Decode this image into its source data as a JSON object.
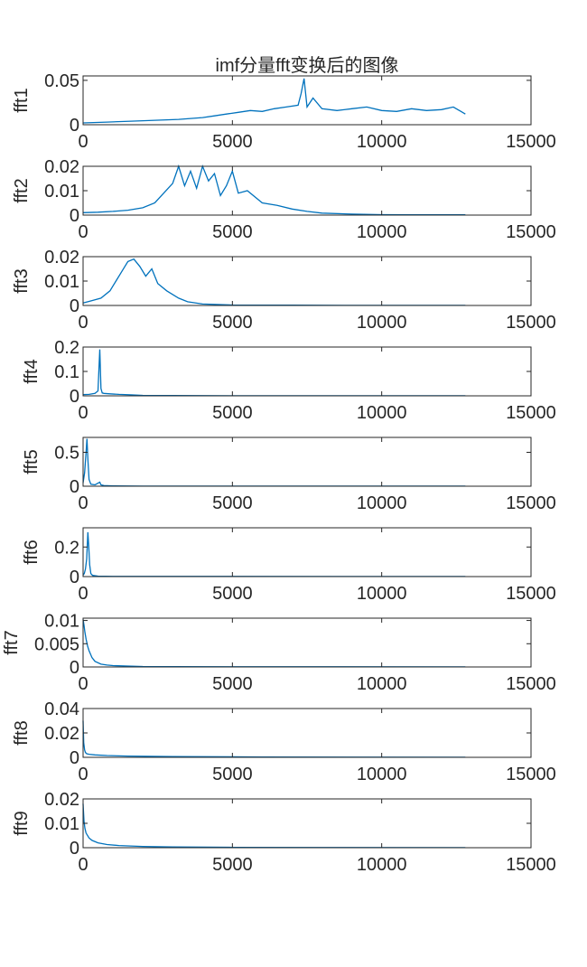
{
  "title": "imf分量fft变换后的图像",
  "colors": {
    "series": "#0072BD",
    "axis": "#262626",
    "background": "#ffffff"
  },
  "chart_data": [
    {
      "type": "line",
      "ylabel": "fft1",
      "xlim": [
        0,
        15000
      ],
      "ylim": [
        0,
        0.055
      ],
      "xticks": [
        "0",
        "5000",
        "10000",
        "15000"
      ],
      "yticks": [
        {
          "v": 0,
          "t": "0"
        },
        {
          "v": 0.05,
          "t": "0.05"
        }
      ],
      "x_end": 12800,
      "series": [
        {
          "x": [
            0,
            800,
            1600,
            2400,
            3200,
            4000,
            4400,
            4800,
            5200,
            5600,
            6000,
            6400,
            6800,
            7200,
            7300,
            7400,
            7500,
            7700,
            8000,
            8500,
            9000,
            9500,
            10000,
            10500,
            11000,
            11500,
            12000,
            12400,
            12800
          ],
          "values": [
            0.002,
            0.003,
            0.004,
            0.005,
            0.006,
            0.008,
            0.01,
            0.012,
            0.014,
            0.016,
            0.015,
            0.018,
            0.02,
            0.022,
            0.035,
            0.052,
            0.02,
            0.03,
            0.018,
            0.016,
            0.018,
            0.02,
            0.016,
            0.015,
            0.018,
            0.016,
            0.017,
            0.02,
            0.012
          ]
        }
      ]
    },
    {
      "type": "line",
      "ylabel": "fft2",
      "xlim": [
        0,
        15000
      ],
      "ylim": [
        0,
        0.02
      ],
      "xticks": [
        "0",
        "5000",
        "10000",
        "15000"
      ],
      "yticks": [
        {
          "v": 0,
          "t": "0"
        },
        {
          "v": 0.01,
          "t": "0.01"
        },
        {
          "v": 0.02,
          "t": "0.02"
        }
      ],
      "x_end": 12800,
      "series": [
        {
          "x": [
            0,
            500,
            1000,
            1500,
            2000,
            2400,
            2700,
            3000,
            3200,
            3400,
            3600,
            3800,
            4000,
            4200,
            4400,
            4600,
            4800,
            5000,
            5200,
            5500,
            6000,
            6500,
            7000,
            7500,
            8000,
            9000,
            10000,
            11000,
            12000,
            12800
          ],
          "values": [
            0.001,
            0.0012,
            0.0015,
            0.002,
            0.003,
            0.005,
            0.009,
            0.013,
            0.02,
            0.012,
            0.018,
            0.011,
            0.02,
            0.014,
            0.017,
            0.008,
            0.012,
            0.018,
            0.009,
            0.01,
            0.005,
            0.004,
            0.0025,
            0.0015,
            0.0008,
            0.0004,
            0.0002,
            0.0001,
            0.0001,
            0.0001
          ]
        }
      ]
    },
    {
      "type": "line",
      "ylabel": "fft3",
      "xlim": [
        0,
        15000
      ],
      "ylim": [
        0,
        0.02
      ],
      "xticks": [
        "0",
        "5000",
        "10000",
        "15000"
      ],
      "yticks": [
        {
          "v": 0,
          "t": "0"
        },
        {
          "v": 0.01,
          "t": "0.01"
        },
        {
          "v": 0.02,
          "t": "0.02"
        }
      ],
      "x_end": 12800,
      "series": [
        {
          "x": [
            0,
            300,
            600,
            900,
            1100,
            1300,
            1500,
            1700,
            1900,
            2100,
            2300,
            2500,
            2800,
            3200,
            3500,
            4000,
            5000,
            7000,
            9000,
            12800
          ],
          "values": [
            0.001,
            0.002,
            0.003,
            0.006,
            0.01,
            0.014,
            0.018,
            0.019,
            0.016,
            0.012,
            0.015,
            0.009,
            0.006,
            0.003,
            0.0015,
            0.0006,
            0.0002,
            0.0001,
            5e-05,
            5e-05
          ]
        }
      ]
    },
    {
      "type": "line",
      "ylabel": "fft4",
      "xlim": [
        0,
        15000
      ],
      "ylim": [
        0,
        0.2
      ],
      "xticks": [
        "0",
        "5000",
        "10000",
        "15000"
      ],
      "yticks": [
        {
          "v": 0,
          "t": "0"
        },
        {
          "v": 0.1,
          "t": "0.1"
        },
        {
          "v": 0.2,
          "t": "0.2"
        }
      ],
      "x_end": 12800,
      "series": [
        {
          "x": [
            0,
            200,
            400,
            500,
            560,
            600,
            640,
            700,
            900,
            1200,
            1600,
            2000,
            3000,
            5000,
            12800
          ],
          "values": [
            0.005,
            0.006,
            0.01,
            0.02,
            0.19,
            0.03,
            0.012,
            0.01,
            0.008,
            0.006,
            0.004,
            0.002,
            0.001,
            0.0005,
            0.0002
          ]
        }
      ]
    },
    {
      "type": "line",
      "ylabel": "fft5",
      "xlim": [
        0,
        15000
      ],
      "ylim": [
        0,
        0.72
      ],
      "xticks": [
        "0",
        "5000",
        "10000",
        "15000"
      ],
      "yticks": [
        {
          "v": 0,
          "t": "0"
        },
        {
          "v": 0.5,
          "t": "0.5"
        }
      ],
      "x_end": 12800,
      "series": [
        {
          "x": [
            0,
            50,
            100,
            130,
            160,
            200,
            260,
            400,
            560,
            600,
            700,
            1000,
            2000,
            12800
          ],
          "values": [
            0.05,
            0.2,
            0.5,
            0.7,
            0.4,
            0.1,
            0.03,
            0.02,
            0.06,
            0.02,
            0.01,
            0.005,
            0.002,
            0.001
          ]
        }
      ]
    },
    {
      "type": "line",
      "ylabel": "fft6",
      "xlim": [
        0,
        15000
      ],
      "ylim": [
        0,
        0.33
      ],
      "xticks": [
        "0",
        "5000",
        "10000",
        "15000"
      ],
      "yticks": [
        {
          "v": 0,
          "t": "0"
        },
        {
          "v": 0.2,
          "t": "0.2"
        }
      ],
      "x_end": 12800,
      "series": [
        {
          "x": [
            0,
            40,
            80,
            120,
            160,
            190,
            220,
            260,
            320,
            500,
            1000,
            12800
          ],
          "values": [
            0.01,
            0.02,
            0.05,
            0.12,
            0.3,
            0.2,
            0.08,
            0.02,
            0.008,
            0.003,
            0.001,
            0.0005
          ]
        }
      ]
    },
    {
      "type": "line",
      "ylabel": "fft7",
      "xlim": [
        0,
        15000
      ],
      "ylim": [
        0,
        0.0105
      ],
      "xticks": [
        "0",
        "5000",
        "10000",
        "15000"
      ],
      "yticks": [
        {
          "v": 0,
          "t": "0"
        },
        {
          "v": 0.005,
          "t": "0.005"
        },
        {
          "v": 0.01,
          "t": "0.01"
        }
      ],
      "x_end": 12800,
      "series": [
        {
          "x": [
            0,
            30,
            60,
            100,
            150,
            200,
            300,
            400,
            600,
            800,
            1000,
            1500,
            2000,
            3000,
            12800
          ],
          "values": [
            0.0102,
            0.009,
            0.0075,
            0.006,
            0.0045,
            0.0035,
            0.002,
            0.0012,
            0.0006,
            0.0004,
            0.0003,
            0.0002,
            0.0001,
            5e-05,
            2e-05
          ]
        }
      ]
    },
    {
      "type": "line",
      "ylabel": "fft8",
      "xlim": [
        0,
        15000
      ],
      "ylim": [
        0,
        0.04
      ],
      "xticks": [
        "0",
        "5000",
        "10000",
        "15000"
      ],
      "yticks": [
        {
          "v": 0,
          "t": "0"
        },
        {
          "v": 0.02,
          "t": "0.02"
        },
        {
          "v": 0.04,
          "t": "0.04"
        }
      ],
      "x_end": 12800,
      "series": [
        {
          "x": [
            0,
            20,
            50,
            80,
            120,
            200,
            400,
            800,
            1500,
            3000,
            6000,
            12800
          ],
          "values": [
            0.03,
            0.012,
            0.006,
            0.004,
            0.003,
            0.0025,
            0.002,
            0.0015,
            0.001,
            0.0006,
            0.0003,
            0.0001
          ]
        }
      ]
    },
    {
      "type": "line",
      "ylabel": "fft9",
      "xlim": [
        0,
        15000
      ],
      "ylim": [
        0,
        0.02
      ],
      "xticks": [
        "0",
        "5000",
        "10000",
        "15000"
      ],
      "yticks": [
        {
          "v": 0,
          "t": "0"
        },
        {
          "v": 0.01,
          "t": "0.01"
        },
        {
          "v": 0.02,
          "t": "0.02"
        }
      ],
      "x_end": 12800,
      "series": [
        {
          "x": [
            0,
            30,
            60,
            100,
            200,
            300,
            500,
            800,
            1200,
            2000,
            3000,
            5000,
            8000,
            12800
          ],
          "values": [
            0.018,
            0.011,
            0.008,
            0.006,
            0.004,
            0.003,
            0.002,
            0.0013,
            0.0009,
            0.0005,
            0.0003,
            0.00015,
            8e-05,
            4e-05
          ]
        }
      ]
    }
  ]
}
